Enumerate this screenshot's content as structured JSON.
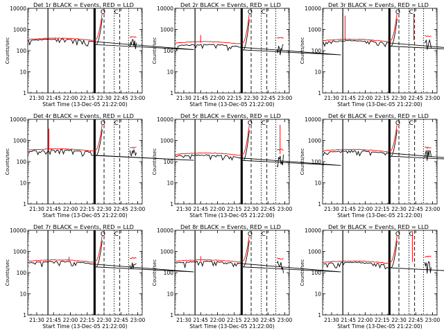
{
  "chart_data": [
    {
      "type": "line",
      "title": "Det 1r  BLACK = Events, RED = LLD",
      "xlabel": "Start Time (13-Dec-05 21:22:00)",
      "ylabel": "Counts/sec",
      "yscale": "log",
      "ylim": [
        1,
        10000
      ],
      "xlim": [
        "21:22",
        "23:04"
      ],
      "x_ticks": [
        "21:30",
        "21:45",
        "22:00",
        "22:15",
        "22:30",
        "22:45",
        "23:00"
      ],
      "y_ticks": [
        "1",
        "10",
        "100",
        "1000",
        "10000"
      ],
      "markers": [
        "O",
        "C"
      ],
      "black_base": 320,
      "red_base": 350,
      "red_spikes": [],
      "black_spikes": [],
      "late_red": 450
    },
    {
      "type": "line",
      "title": "Det 2r  BLACK = Events, RED = LLD",
      "xlabel": "Start Time (13-Dec-05 21:22:00)",
      "ylabel": "Counts/sec",
      "yscale": "log",
      "ylim": [
        1,
        10000
      ],
      "xlim": [
        "21:22",
        "23:04"
      ],
      "x_ticks": [
        "21:30",
        "21:45",
        "22:00",
        "22:15",
        "22:30",
        "22:45",
        "23:00"
      ],
      "y_ticks": [
        "1",
        "10",
        "100",
        "1000",
        "10000"
      ],
      "markers": [
        "O",
        "C"
      ],
      "black_base": 180,
      "red_base": 240,
      "red_spikes": [
        [
          21.75,
          550
        ]
      ],
      "black_spikes": [],
      "late_red": 420
    },
    {
      "type": "line",
      "title": "Det 3r  BLACK = Events, RED = LLD",
      "xlabel": "Start Time (13-Dec-05 21:22:00)",
      "ylabel": "Counts/sec",
      "yscale": "log",
      "ylim": [
        1,
        10000
      ],
      "xlim": [
        "21:22",
        "23:04"
      ],
      "x_ticks": [
        "21:30",
        "21:45",
        "22:00",
        "22:15",
        "22:30",
        "22:45",
        "23:00"
      ],
      "y_ticks": [
        "1",
        "10",
        "100",
        "1000",
        "10000"
      ],
      "markers": [
        "O",
        "C"
      ],
      "black_base": 270,
      "red_base": 310,
      "red_spikes": [
        [
          21.7,
          4500
        ],
        [
          22.72,
          5500
        ]
      ],
      "black_spikes": [],
      "late_red": 500
    },
    {
      "type": "line",
      "title": "Det 4r  BLACK = Events, RED = LLD",
      "xlabel": "Start Time (13-Dec-05 21:22:00)",
      "ylabel": "Counts/sec",
      "yscale": "log",
      "ylim": [
        1,
        10000
      ],
      "xlim": [
        "21:22",
        "23:04"
      ],
      "x_ticks": [
        "21:30",
        "21:45",
        "22:00",
        "22:15",
        "22:30",
        "22:45",
        "23:00"
      ],
      "y_ticks": [
        "1",
        "10",
        "100",
        "1000",
        "10000"
      ],
      "markers": [
        "O",
        "C"
      ],
      "black_base": 330,
      "red_base": 360,
      "red_spikes": [
        [
          21.68,
          3600
        ]
      ],
      "black_spikes": [],
      "late_red": 480
    },
    {
      "type": "line",
      "title": "Det 5r  BLACK = Events, RED = LLD",
      "xlabel": "Start Time (13-Dec-05 21:22:00)",
      "ylabel": "Counts/sec",
      "yscale": "log",
      "ylim": [
        1,
        10000
      ],
      "xlim": [
        "21:22",
        "23:04"
      ],
      "x_ticks": [
        "21:30",
        "21:45",
        "22:00",
        "22:15",
        "22:30",
        "22:45",
        "23:00"
      ],
      "y_ticks": [
        "1",
        "10",
        "100",
        "1000",
        "10000"
      ],
      "markers": [
        "O",
        "C"
      ],
      "black_base": 190,
      "red_base": 230,
      "red_spikes": [
        [
          22.93,
          5500
        ]
      ],
      "black_spikes": [],
      "late_red": 380
    },
    {
      "type": "line",
      "title": "Det 6r  BLACK = Events, RED = LLD",
      "xlabel": "Start Time (13-Dec-05 21:22:00)",
      "ylabel": "Counts/sec",
      "yscale": "log",
      "ylim": [
        1,
        10000
      ],
      "xlim": [
        "21:22",
        "23:04"
      ],
      "x_ticks": [
        "21:30",
        "21:45",
        "22:00",
        "22:15",
        "22:30",
        "22:45",
        "23:00"
      ],
      "y_ticks": [
        "1",
        "10",
        "100",
        "1000",
        "10000"
      ],
      "markers": [
        "O",
        "C"
      ],
      "black_base": 300,
      "red_base": 340,
      "red_spikes": [],
      "black_spikes": [],
      "late_red": 470
    },
    {
      "type": "line",
      "title": "Det 7r  BLACK = Events, RED = LLD",
      "xlabel": "Start Time (13-Dec-05 21:22:00)",
      "ylabel": "Counts/sec",
      "yscale": "log",
      "ylim": [
        1,
        10000
      ],
      "xlim": [
        "21:22",
        "23:04"
      ],
      "x_ticks": [
        "21:30",
        "21:45",
        "22:00",
        "22:15",
        "22:30",
        "22:45",
        "23:00"
      ],
      "y_ticks": [
        "1",
        "10",
        "100",
        "1000",
        "10000"
      ],
      "markers": [
        "O",
        "C"
      ],
      "black_base": 310,
      "red_base": 360,
      "red_spikes": [
        [
          21.98,
          560
        ]
      ],
      "black_spikes": [],
      "late_red": 500
    },
    {
      "type": "line",
      "title": "Det 8r  BLACK = Events, RED = LLD",
      "xlabel": "Start Time (13-Dec-05 21:22:00)",
      "ylabel": "Counts/sec",
      "yscale": "log",
      "ylim": [
        1,
        10000
      ],
      "xlim": [
        "21:22",
        "23:04"
      ],
      "x_ticks": [
        "21:30",
        "21:45",
        "22:00",
        "22:15",
        "22:30",
        "22:45",
        "23:00"
      ],
      "y_ticks": [
        "1",
        "10",
        "100",
        "1000",
        "10000"
      ],
      "markers": [
        "O",
        "C"
      ],
      "black_base": 310,
      "red_base": 360,
      "red_spikes": [
        [
          21.75,
          600
        ]
      ],
      "black_spikes": [],
      "late_red": 480
    },
    {
      "type": "line",
      "title": "Det 9r  BLACK = Events, RED = LLD",
      "xlabel": "Start Time (13-Dec-05 21:22:00)",
      "ylabel": "Counts/sec",
      "yscale": "log",
      "ylim": [
        1,
        10000
      ],
      "xlim": [
        "21:22",
        "23:04"
      ],
      "x_ticks": [
        "21:30",
        "21:45",
        "22:00",
        "22:15",
        "22:30",
        "22:45",
        "23:00"
      ],
      "y_ticks": [
        "1",
        "10",
        "100",
        "1000",
        "10000"
      ],
      "markers": [
        "O",
        "C"
      ],
      "black_base": 280,
      "red_base": 320,
      "red_spikes": [
        [
          22.7,
          8000
        ]
      ],
      "black_spikes": [],
      "late_red": 600
    }
  ],
  "colors": {
    "events": "#000000",
    "lld": "#ff0000",
    "axes": "#000000",
    "background": "#ffffff"
  }
}
